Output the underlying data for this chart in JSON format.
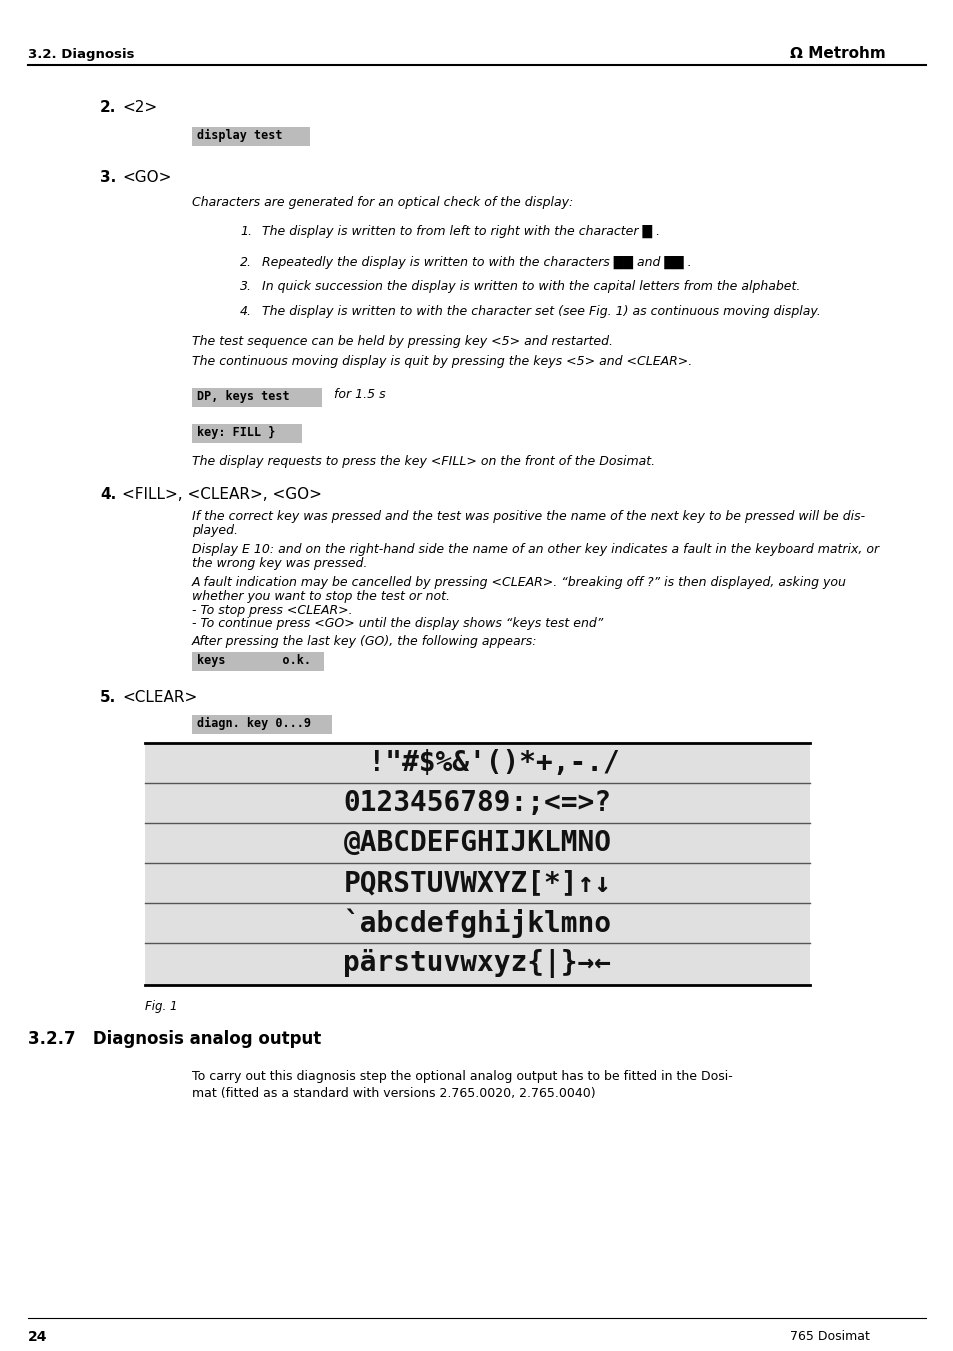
{
  "bg": "#ffffff",
  "box_bg": "#bbbbbb",
  "char_area_bg": "#e0e0e0",
  "header_label": "3.2. Diagnosis",
  "metrohm_label": "Ω Metrohm",
  "footer_page": "24",
  "footer_right": "765 Dosimat",
  "char_rows": [
    "  !\"#$%&'()*+,-./",
    "0123456789:;<=>?",
    "@ABCDEFGHIJKLMNO",
    "PQRSTUVWXYZ[*]↑↓",
    "`abcdefghijklmno",
    "pärstuvwxyz{|}→←"
  ],
  "fig1_label": "Fig. 1",
  "sec327_title": "3.2.7   Diagnosis analog output",
  "sec327_body1": "To carry out this diagnosis step the optional analog output has to be fitted in the Dosi-",
  "sec327_body2": "mat (fitted as a standard with versions 2.765.0020, 2.765.0040)"
}
